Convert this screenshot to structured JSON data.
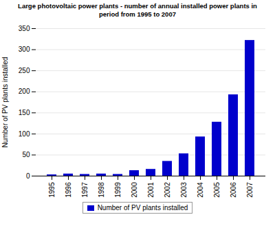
{
  "chart_data": {
    "type": "bar",
    "title": "Large photovoltaic power plants - number of annual installed power plants in\nperiod from 1995 to 2007",
    "ylabel": "Number of PV plants installed",
    "categories": [
      "1995",
      "1996",
      "1997",
      "1998",
      "1999",
      "2000",
      "2001",
      "2002",
      "2003",
      "2004",
      "2005",
      "2006",
      "2007"
    ],
    "series": [
      {
        "name": "Number of PV plants installed",
        "color": "#0000CC",
        "values": [
          3,
          5,
          4,
          5,
          4,
          13,
          16,
          35,
          53,
          93,
          128,
          193,
          322
        ]
      }
    ],
    "ylim": [
      0,
      350
    ],
    "yticks": [
      0,
      50,
      100,
      150,
      200,
      250,
      300,
      350
    ],
    "grid": true,
    "legend": "bottom"
  }
}
